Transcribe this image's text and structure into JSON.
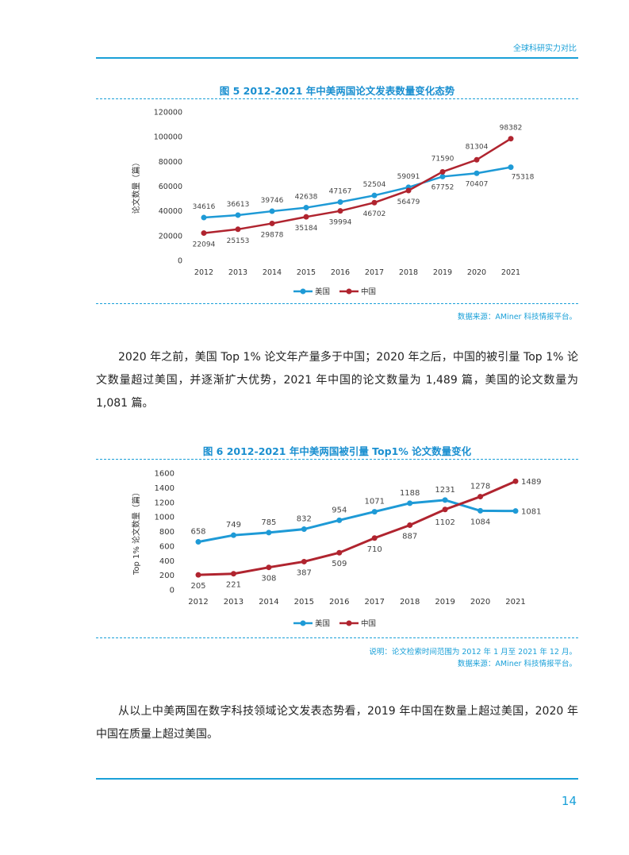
{
  "header": {
    "title": "全球科研实力对比"
  },
  "colors": {
    "accent": "#1aa0d8",
    "us_series": "#1e9ad6",
    "cn_series": "#b0242f"
  },
  "figure5": {
    "title": "图 5 2012-2021 年中美两国论文发表数量变化态势",
    "source": "数据来源：AMiner 科技情报平台。"
  },
  "paragraph1": "2020 年之前，美国 Top 1% 论文年产量多于中国；2020 年之后，中国的被引量 Top 1% 论文数量超过美国，并逐渐扩大优势，2021 年中国的论文数量为 1,489 篇，美国的论文数量为 1,081 篇。",
  "figure6": {
    "title": "图 6 2012-2021 年中美两国被引量 Top1% 论文数量变化",
    "note": "说明：论文检索时间范围为 2012 年 1 月至 2021 年 12 月。",
    "source": "数据来源：AMiner 科技情报平台。"
  },
  "paragraph2": "从以上中美两国在数字科技领域论文发表态势看，2019 年中国在数量上超过美国，2020 年中国在质量上超过美国。",
  "page_number": "14",
  "chart_data": [
    {
      "type": "line",
      "categories": [
        "2012",
        "2013",
        "2014",
        "2015",
        "2016",
        "2017",
        "2018",
        "2019",
        "2020",
        "2021"
      ],
      "series": [
        {
          "name": "美国",
          "values": [
            34616,
            36613,
            39746,
            42638,
            47167,
            52504,
            59091,
            67752,
            70407,
            75318
          ]
        },
        {
          "name": "中国",
          "values": [
            22094,
            25153,
            29878,
            35184,
            39994,
            46702,
            56479,
            71590,
            81304,
            98382
          ]
        }
      ],
      "ylabel": "论文数量（篇）",
      "ylim": [
        0,
        120000
      ],
      "yticks": [
        "0",
        "20000",
        "40000",
        "60000",
        "80000",
        "100000",
        "120000"
      ],
      "legend": "bottom",
      "grid": false
    },
    {
      "type": "line",
      "categories": [
        "2012",
        "2013",
        "2014",
        "2015",
        "2016",
        "2017",
        "2018",
        "2019",
        "2020",
        "2021"
      ],
      "series": [
        {
          "name": "美国",
          "values": [
            658,
            749,
            785,
            832,
            954,
            1071,
            1188,
            1231,
            1084,
            1081
          ]
        },
        {
          "name": "中国",
          "values": [
            205,
            221,
            308,
            387,
            509,
            710,
            887,
            1102,
            1278,
            1489
          ]
        }
      ],
      "ylabel": "Top 1% 论文数量（篇）",
      "ylim": [
        0,
        1600
      ],
      "yticks": [
        "0",
        "200",
        "400",
        "600",
        "800",
        "1000",
        "1200",
        "1400",
        "1600"
      ],
      "legend": "bottom",
      "grid": false
    }
  ]
}
